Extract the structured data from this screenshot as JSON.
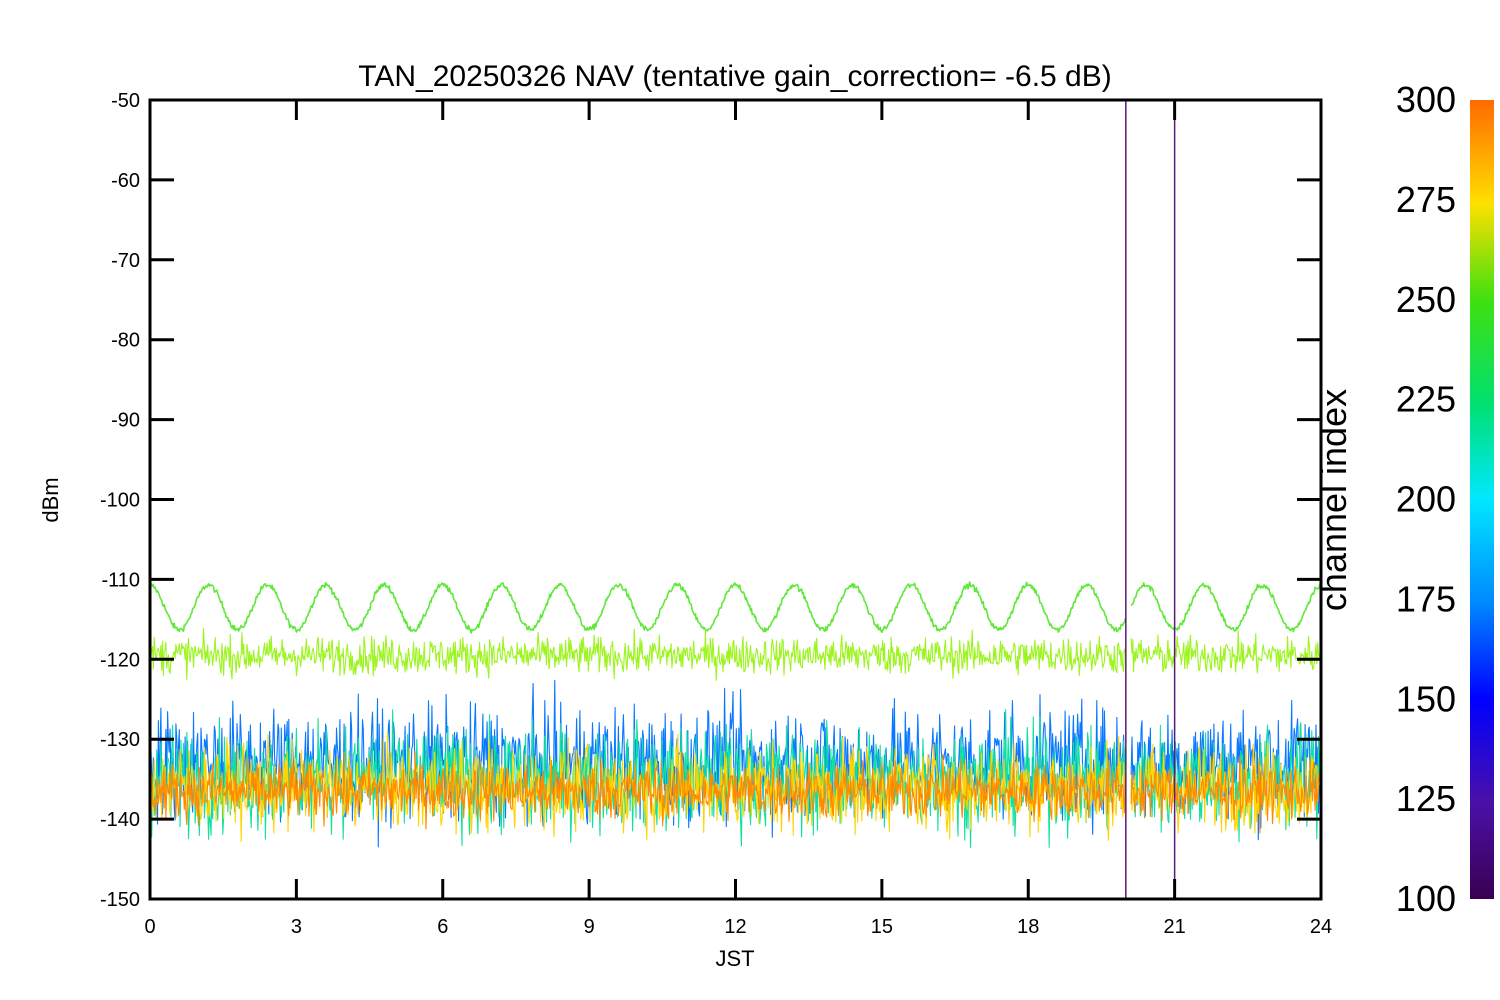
{
  "chart_data": {
    "type": "line",
    "title": "TAN_20250326 NAV (tentative gain_correction= -6.5 dB)",
    "xlabel": "JST",
    "ylabel": "dBm",
    "xlim": [
      0,
      24
    ],
    "ylim": [
      -150,
      -50
    ],
    "xticks": [
      0,
      3,
      6,
      9,
      12,
      15,
      18,
      21,
      24
    ],
    "yticks": [
      -50,
      -60,
      -70,
      -80,
      -90,
      -100,
      -110,
      -120,
      -130,
      -140,
      -150
    ],
    "colorbar": {
      "label": "channel index",
      "range": [
        100,
        300
      ],
      "ticks": [
        300,
        275,
        250,
        225,
        200,
        175,
        150,
        125,
        100
      ]
    },
    "series": [
      {
        "channel_index": 245,
        "color": "#5fe83a",
        "pattern": "sinusoid",
        "center_dBm": -113.5,
        "amplitude_dB": 2.8,
        "period_hours": 1.2,
        "x_range": [
          0,
          24
        ]
      },
      {
        "channel_index": 260,
        "color": "#9cf51e",
        "pattern": "noise_band",
        "center_dBm": -119.5,
        "spread_dB": 4,
        "x_range": [
          0,
          24
        ]
      },
      {
        "channel_index": 150,
        "color": "#0a78ff",
        "pattern": "noise_band",
        "center_dBm": -133,
        "spread_dB": 12,
        "x_range": [
          0,
          24
        ]
      },
      {
        "channel_index": 200,
        "color": "#10e0a0",
        "pattern": "noise_band",
        "center_dBm": -135,
        "spread_dB": 11,
        "x_range": [
          0,
          24
        ]
      },
      {
        "channel_index": 275,
        "color": "#ffd400",
        "pattern": "noise_band",
        "center_dBm": -136,
        "spread_dB": 9,
        "x_range": [
          0,
          24
        ]
      },
      {
        "channel_index": 295,
        "color": "#ff8a00",
        "pattern": "noise_band",
        "center_dBm": -136.5,
        "spread_dB": 6,
        "x_range": [
          0,
          24
        ]
      }
    ],
    "gaps": [
      [
        20.0,
        20.1
      ]
    ],
    "vertical_markers": [
      {
        "x": 20.0,
        "color": "#5a1a7a"
      },
      {
        "x": 21.0,
        "color": "#5a1a7a"
      }
    ]
  }
}
